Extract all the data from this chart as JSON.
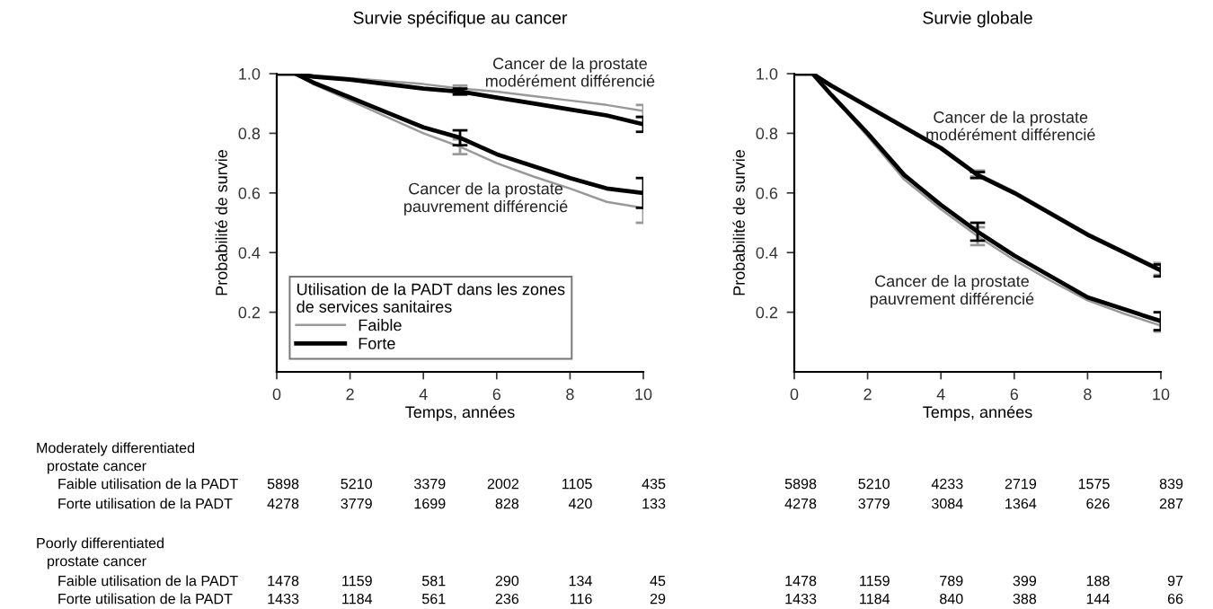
{
  "chart_data": [
    {
      "type": "line",
      "title": "Survie spécifique au cancer",
      "xlabel": "Temps, années",
      "ylabel": "Probabilité de survie",
      "xlim": [
        0,
        10
      ],
      "xticks": [
        0,
        2,
        4,
        6,
        8,
        10
      ],
      "ylim": [
        0,
        1.0
      ],
      "yticks": [
        0.2,
        0.4,
        0.6,
        0.8,
        {
          "value": 1.0,
          "label": "1.0"
        }
      ],
      "grid": false,
      "legend": "bottom left",
      "legend_title": "Utilisation de la PADT dans les zones\nde services sanitaires",
      "marker": "none",
      "line_style": "solid",
      "series": [
        {
          "name": "Faible",
          "color": "#999999",
          "x": [
            0,
            0.5,
            1,
            2,
            3,
            4,
            5,
            6,
            7,
            8,
            9,
            10
          ],
          "values": [
            1.0,
            1.0,
            0.995,
            0.985,
            0.975,
            0.965,
            0.95,
            0.94,
            0.925,
            0.91,
            0.895,
            0.875
          ],
          "errors": [
            null,
            null,
            null,
            null,
            null,
            null,
            0.01,
            null,
            null,
            null,
            null,
            0.02
          ]
        },
        {
          "name": "Forte",
          "color": "#000000",
          "x": [
            0,
            0.5,
            1,
            2,
            3,
            4,
            5,
            6,
            7,
            8,
            9,
            10
          ],
          "values": [
            1.0,
            1.0,
            0.99,
            0.98,
            0.965,
            0.95,
            0.94,
            0.92,
            0.9,
            0.88,
            0.86,
            0.83
          ],
          "errors": [
            null,
            null,
            null,
            null,
            null,
            null,
            0.01,
            null,
            null,
            null,
            null,
            0.025
          ]
        },
        {
          "color": "#999999",
          "x": [
            0,
            0.5,
            1,
            2,
            3,
            4,
            5,
            6,
            7,
            8,
            9,
            10
          ],
          "values": [
            1.0,
            1.0,
            0.965,
            0.91,
            0.855,
            0.8,
            0.755,
            0.7,
            0.655,
            0.615,
            0.57,
            0.55
          ],
          "errors": [
            null,
            null,
            null,
            null,
            null,
            null,
            0.025,
            null,
            null,
            null,
            null,
            0.05
          ]
        },
        {
          "color": "#000000",
          "x": [
            0,
            0.5,
            1,
            2,
            3,
            4,
            5,
            6,
            7,
            8,
            9,
            10
          ],
          "values": [
            1.0,
            1.0,
            0.97,
            0.92,
            0.87,
            0.82,
            0.785,
            0.73,
            0.69,
            0.65,
            0.615,
            0.6
          ],
          "errors": [
            null,
            null,
            null,
            null,
            null,
            null,
            0.025,
            null,
            null,
            null,
            null,
            0.05
          ]
        }
      ],
      "annotations": [
        "Cancer de la prostate\nmodérément différencié",
        "Cancer de la prostate\npauvrement différencié",
        "Moderately differentiated",
        "prostate cancer",
        "Faible utilisation de la PADT",
        "5898",
        "5210",
        "3379",
        "2002",
        "1105",
        "435",
        "Forte utilisation de la PADT",
        "4278",
        "3779",
        "1699",
        "828",
        "420",
        "133",
        "Poorly differentiated",
        "prostate cancer",
        "Faible utilisation de la PADT",
        "1478",
        "1159",
        "581",
        "290",
        "134",
        "45",
        "Forte utilisation de la PADT",
        "1433",
        "1184",
        "561",
        "236",
        "116",
        "29"
      ]
    },
    {
      "type": "line",
      "title": "Survie globale",
      "xlabel": "Temps, années",
      "ylabel": "Probabilité de survie",
      "xlim": [
        0,
        10
      ],
      "xticks": [
        0,
        2,
        4,
        6,
        8,
        10
      ],
      "ylim": [
        0,
        1.0
      ],
      "yticks": [
        0.2,
        0.4,
        0.6,
        0.8,
        {
          "value": 1.0,
          "label": "1.0"
        }
      ],
      "grid": false,
      "marker": "none",
      "line_style": "solid",
      "series": [
        {
          "color": "#999999",
          "x": [
            0,
            0.5,
            1,
            2,
            3,
            4,
            5,
            6,
            7,
            8,
            9,
            10
          ],
          "values": [
            1.0,
            1.0,
            0.965,
            0.895,
            0.825,
            0.755,
            0.665,
            0.605,
            0.535,
            0.465,
            0.405,
            0.345
          ],
          "errors": [
            null,
            null,
            null,
            null,
            null,
            null,
            0.01,
            null,
            null,
            null,
            null,
            0.02
          ]
        },
        {
          "color": "#000000",
          "x": [
            0,
            0.5,
            1,
            2,
            3,
            4,
            5,
            6,
            7,
            8,
            9,
            10
          ],
          "values": [
            1.0,
            1.0,
            0.96,
            0.89,
            0.82,
            0.75,
            0.66,
            0.6,
            0.53,
            0.46,
            0.4,
            0.34
          ],
          "errors": [
            null,
            null,
            null,
            null,
            null,
            null,
            0.01,
            null,
            null,
            null,
            null,
            0.02
          ]
        },
        {
          "color": "#999999",
          "x": [
            0,
            0.5,
            1,
            2,
            3,
            4,
            5,
            6,
            7,
            8,
            9,
            10
          ],
          "values": [
            1.0,
            1.0,
            0.93,
            0.79,
            0.645,
            0.545,
            0.455,
            0.375,
            0.305,
            0.24,
            0.195,
            0.155
          ],
          "errors": [
            null,
            null,
            null,
            null,
            null,
            null,
            0.03,
            null,
            null,
            null,
            null,
            0.02
          ]
        },
        {
          "color": "#000000",
          "x": [
            0,
            0.5,
            1,
            2,
            3,
            4,
            5,
            6,
            7,
            8,
            9,
            10
          ],
          "values": [
            1.0,
            1.0,
            0.93,
            0.8,
            0.66,
            0.56,
            0.47,
            0.39,
            0.32,
            0.25,
            0.21,
            0.17
          ],
          "errors": [
            null,
            null,
            null,
            null,
            null,
            null,
            0.03,
            null,
            null,
            null,
            null,
            0.03
          ]
        }
      ],
      "annotations": [
        "Cancer de la prostate\nmodérément différencié",
        "Cancer de la prostate\npauvrement différencié",
        "5898",
        "5210",
        "4233",
        "2719",
        "1575",
        "839",
        "4278",
        "3779",
        "3084",
        "1364",
        "626",
        "287",
        "1478",
        "1159",
        "789",
        "399",
        "188",
        "97",
        "1433",
        "1184",
        "840",
        "388",
        "144",
        "66"
      ]
    }
  ]
}
